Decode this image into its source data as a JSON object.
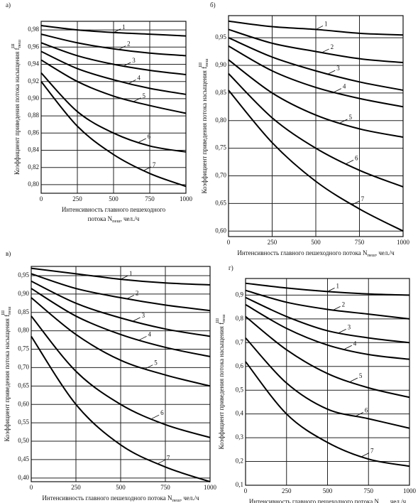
{
  "chart_data": [
    {
      "type": "line",
      "panel": "а)",
      "ylabel": "Коэффициент приведения потока насыщения f",
      "ylabel_sub": "пеш",
      "ylabel_sup": "Ш",
      "xlabel": [
        "Интенсивность главного пешеходного",
        "потока N"
      ],
      "xlabel_sub": "пеш",
      "xlabel_unit": ", чел./ч",
      "x": [
        0,
        250,
        500,
        750,
        1000
      ],
      "xlim": [
        0,
        1000
      ],
      "xticks": [
        0,
        250,
        500,
        750,
        1000
      ],
      "ylim": [
        0.79,
        0.99
      ],
      "yticks": [
        {
          "value": 0.8,
          "label": "0,80"
        },
        {
          "value": 0.82,
          "label": "0,82"
        },
        {
          "value": 0.84,
          "label": "0,84"
        },
        {
          "value": 0.86,
          "label": "0,86"
        },
        {
          "value": 0.88,
          "label": "0,88"
        },
        {
          "value": 0.9,
          "label": "0,90"
        },
        {
          "value": 0.92,
          "label": "0,92"
        },
        {
          "value": 0.94,
          "label": "0,94"
        },
        {
          "value": 0.96,
          "label": "0,96"
        },
        {
          "value": 0.98,
          "label": "0,98"
        }
      ],
      "grid": true,
      "series": [
        {
          "name": "1",
          "color": "#000000",
          "values": [
            0.985,
            0.98,
            0.977,
            0.975,
            0.973
          ]
        },
        {
          "name": "2",
          "color": "#000000",
          "values": [
            0.975,
            0.965,
            0.958,
            0.953,
            0.95
          ]
        },
        {
          "name": "3",
          "color": "#000000",
          "values": [
            0.965,
            0.95,
            0.94,
            0.933,
            0.928
          ]
        },
        {
          "name": "4",
          "color": "#000000",
          "values": [
            0.955,
            0.935,
            0.922,
            0.912,
            0.905
          ]
        },
        {
          "name": "5",
          "color": "#000000",
          "values": [
            0.945,
            0.92,
            0.903,
            0.892,
            0.883
          ]
        },
        {
          "name": "6",
          "color": "#000000",
          "values": [
            0.93,
            0.885,
            0.86,
            0.845,
            0.838
          ]
        },
        {
          "name": "7",
          "color": "#000000",
          "values": [
            0.92,
            0.868,
            0.835,
            0.813,
            0.798
          ]
        }
      ]
    },
    {
      "type": "line",
      "panel": "б)",
      "ylabel": "Коэффициент приведения потока насыщения f",
      "ylabel_sub": "пеш",
      "ylabel_sup": "Ш",
      "xlabel": [
        "Интенсивность главного пешеходного потока N"
      ],
      "xlabel_sub": "пеш",
      "xlabel_unit": ", чел./ч",
      "x": [
        0,
        250,
        500,
        750,
        1000
      ],
      "xlim": [
        0,
        1000
      ],
      "xticks": [
        0,
        250,
        500,
        750,
        1000
      ],
      "ylim": [
        0.59,
        0.99
      ],
      "yticks": [
        {
          "value": 0.6,
          "label": "0,60"
        },
        {
          "value": 0.65,
          "label": "0,65"
        },
        {
          "value": 0.7,
          "label": "0,70"
        },
        {
          "value": 0.75,
          "label": "0,75"
        },
        {
          "value": 0.8,
          "label": "0,80"
        },
        {
          "value": 0.85,
          "label": "0,85"
        },
        {
          "value": 0.9,
          "label": "0,90"
        },
        {
          "value": 0.95,
          "label": "0,95"
        }
      ],
      "grid": true,
      "series": [
        {
          "name": "1",
          "color": "#000000",
          "values": [
            0.98,
            0.97,
            0.965,
            0.958,
            0.955
          ]
        },
        {
          "name": "2",
          "color": "#000000",
          "values": [
            0.965,
            0.94,
            0.925,
            0.912,
            0.905
          ]
        },
        {
          "name": "3",
          "color": "#000000",
          "values": [
            0.95,
            0.915,
            0.89,
            0.87,
            0.855
          ]
        },
        {
          "name": "4",
          "color": "#000000",
          "values": [
            0.935,
            0.89,
            0.86,
            0.84,
            0.825
          ]
        },
        {
          "name": "5",
          "color": "#000000",
          "values": [
            0.91,
            0.85,
            0.81,
            0.785,
            0.77
          ]
        },
        {
          "name": "6",
          "color": "#000000",
          "values": [
            0.885,
            0.805,
            0.75,
            0.71,
            0.68
          ]
        },
        {
          "name": "7",
          "color": "#000000",
          "values": [
            0.855,
            0.76,
            0.69,
            0.64,
            0.6
          ]
        }
      ]
    },
    {
      "type": "line",
      "panel": "в)",
      "ylabel": "Коэффициент приведения потока насыщения f",
      "ylabel_sub": "пеш",
      "ylabel_sup": "Ш",
      "xlabel": [
        "Интенсивность главного пешеходного потока N"
      ],
      "xlabel_sub": "пеш",
      "xlabel_unit": ", чел./ч",
      "x": [
        0,
        250,
        500,
        750,
        1000
      ],
      "xlim": [
        0,
        1000
      ],
      "xticks": [
        0,
        250,
        500,
        750,
        1000
      ],
      "ylim": [
        0.39,
        0.975
      ],
      "yticks": [
        {
          "value": 0.4,
          "label": "0,40"
        },
        {
          "value": 0.45,
          "label": "0,45"
        },
        {
          "value": 0.5,
          "label": "0,50"
        },
        {
          "value": 0.55,
          "label": "0,55"
        },
        {
          "value": 0.6,
          "label": "0,60"
        },
        {
          "value": 0.65,
          "label": "0,65"
        },
        {
          "value": 0.7,
          "label": "0,70"
        },
        {
          "value": 0.75,
          "label": "0,75"
        },
        {
          "value": 0.8,
          "label": "0,80"
        },
        {
          "value": 0.85,
          "label": "0,85"
        },
        {
          "value": 0.9,
          "label": "0,90"
        },
        {
          "value": 0.95,
          "label": "0,95"
        }
      ],
      "grid": true,
      "series": [
        {
          "name": "1",
          "color": "#000000",
          "values": [
            0.97,
            0.955,
            0.94,
            0.93,
            0.925
          ]
        },
        {
          "name": "2",
          "color": "#000000",
          "values": [
            0.955,
            0.915,
            0.89,
            0.87,
            0.855
          ]
        },
        {
          "name": "3",
          "color": "#000000",
          "values": [
            0.935,
            0.875,
            0.835,
            0.805,
            0.785
          ]
        },
        {
          "name": "4",
          "color": "#000000",
          "values": [
            0.915,
            0.84,
            0.79,
            0.755,
            0.73
          ]
        },
        {
          "name": "5",
          "color": "#000000",
          "values": [
            0.89,
            0.79,
            0.72,
            0.68,
            0.65
          ]
        },
        {
          "name": "6",
          "color": "#000000",
          "values": [
            0.84,
            0.69,
            0.6,
            0.545,
            0.51
          ]
        },
        {
          "name": "7",
          "color": "#000000",
          "values": [
            0.785,
            0.6,
            0.49,
            0.43,
            0.39
          ]
        }
      ]
    },
    {
      "type": "line",
      "panel": "г)",
      "ylabel": "Коэффициент приведения потока насыщения f",
      "ylabel_sub": "пеш",
      "ylabel_sup": "Ш",
      "xlabel": [
        "Интенсивность главного пешеходного потока N"
      ],
      "xlabel_sub": "пеш",
      "xlabel_unit": ", чел./ч",
      "x": [
        0,
        250,
        500,
        750,
        1000
      ],
      "xlim": [
        0,
        1000
      ],
      "xticks": [
        0,
        250,
        500,
        750,
        1000
      ],
      "ylim": [
        0.1,
        0.97
      ],
      "yticks": [
        {
          "value": 0.1,
          "label": "0,1"
        },
        {
          "value": 0.2,
          "label": "0,2"
        },
        {
          "value": 0.3,
          "label": "0,3"
        },
        {
          "value": 0.4,
          "label": "0,4"
        },
        {
          "value": 0.5,
          "label": "0,5"
        },
        {
          "value": 0.6,
          "label": "0,6"
        },
        {
          "value": 0.7,
          "label": "0,7"
        },
        {
          "value": 0.8,
          "label": "0,8"
        },
        {
          "value": 0.9,
          "label": "0,9"
        }
      ],
      "grid": true,
      "series": [
        {
          "name": "1",
          "color": "#000000",
          "values": [
            0.95,
            0.93,
            0.915,
            0.905,
            0.9
          ]
        },
        {
          "name": "2",
          "color": "#000000",
          "values": [
            0.92,
            0.87,
            0.84,
            0.82,
            0.8
          ]
        },
        {
          "name": "3",
          "color": "#000000",
          "values": [
            0.89,
            0.81,
            0.75,
            0.72,
            0.7
          ]
        },
        {
          "name": "4",
          "color": "#000000",
          "values": [
            0.86,
            0.76,
            0.69,
            0.65,
            0.63
          ]
        },
        {
          "name": "5",
          "color": "#000000",
          "values": [
            0.81,
            0.67,
            0.57,
            0.51,
            0.47
          ]
        },
        {
          "name": "6",
          "color": "#000000",
          "values": [
            0.72,
            0.53,
            0.42,
            0.38,
            0.34
          ]
        },
        {
          "name": "7",
          "color": "#000000",
          "values": [
            0.62,
            0.4,
            0.28,
            0.21,
            0.18
          ]
        }
      ]
    }
  ]
}
